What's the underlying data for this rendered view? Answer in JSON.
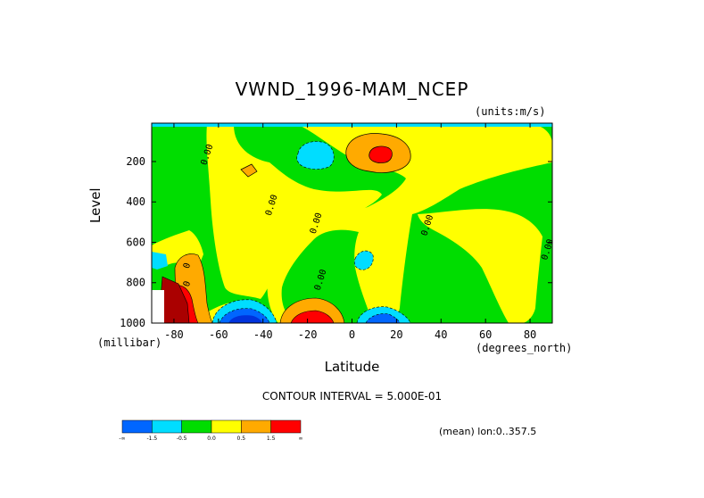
{
  "chart_data": {
    "type": "heatmap",
    "title": "VWND_1996-MAM_NCEP",
    "units_label": "(units:m/s)",
    "ylabel": "Level",
    "y_unit_label": "(millibar)",
    "xlabel": "Latitude",
    "x_unit_label": "(degrees_north)",
    "xlim": [
      -90,
      90
    ],
    "ylim": [
      1000,
      10
    ],
    "x_ticks": [
      -80,
      -60,
      -40,
      -20,
      0,
      20,
      40,
      60,
      80
    ],
    "y_ticks": [
      200,
      400,
      600,
      800,
      1000
    ],
    "contour_interval_text": "CONTOUR INTERVAL = 5.000E-01",
    "contour_labels": [
      {
        "text": "0.00",
        "lat": -64,
        "level": 170
      },
      {
        "text": "0.00",
        "lat": -35,
        "level": 420
      },
      {
        "text": "0.00",
        "lat": -15,
        "level": 510
      },
      {
        "text": "0.00",
        "lat": -13,
        "level": 790
      },
      {
        "text": "0.00",
        "lat": 35,
        "level": 520
      },
      {
        "text": "0.00",
        "lat": 89,
        "level": 640
      },
      {
        "text": "0",
        "lat": -73,
        "level": 720
      },
      {
        "text": "0",
        "lat": -73,
        "level": 810
      }
    ],
    "colorbar": {
      "tick_labels": [
        "-∞",
        "-1.5",
        "-0.5",
        "0.0",
        "0.5",
        "1.5",
        "∞"
      ],
      "colors": [
        "#0066ff",
        "#00ddff",
        "#00dd00",
        "#ffff00",
        "#ffaa00",
        "#ff0000"
      ]
    },
    "note": "(mean) lon:0..357.5",
    "colors": {
      "neg_strong": "#0033dd",
      "neg_mid": "#0066ff",
      "neg_weak": "#00ddff",
      "zero_neg": "#00dd00",
      "zero_pos": "#ffff00",
      "pos_weak": "#ffaa00",
      "pos_strong": "#ff0000",
      "pos_max": "#aa0000"
    }
  }
}
